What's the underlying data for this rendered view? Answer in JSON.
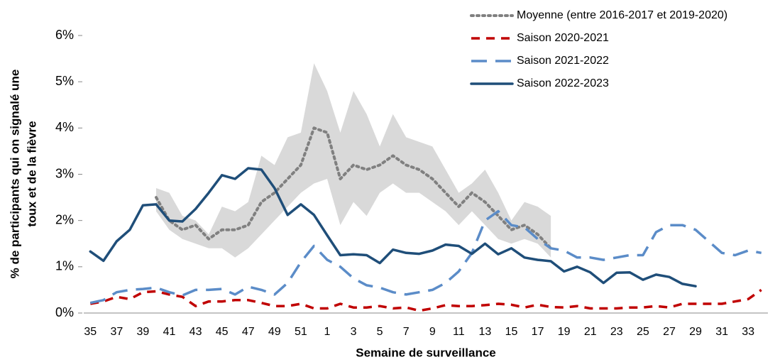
{
  "chart_data": {
    "type": "line",
    "xlabel": "Semaine de surveillance",
    "ylabel": [
      "% de participants qui on signalé une",
      "toux et de la fièvre"
    ],
    "categories": [
      "35",
      null,
      "37",
      null,
      "39",
      null,
      "41",
      null,
      "43",
      null,
      "45",
      null,
      "47",
      null,
      "49",
      null,
      "51",
      null,
      "1",
      null,
      "3",
      null,
      "5",
      null,
      "7",
      null,
      "9",
      null,
      "11",
      null,
      "13",
      null,
      "15",
      null,
      "17",
      null,
      "19",
      null,
      "21",
      null,
      "23",
      null,
      "25",
      null,
      "27",
      null,
      "29",
      null,
      "31",
      null,
      "33",
      null
    ],
    "ylim": [
      0,
      0.06
    ],
    "yticks": [
      {
        "value": 0,
        "label": "0%"
      },
      {
        "value": 0.01,
        "label": "1%"
      },
      {
        "value": 0.02,
        "label": "2%"
      },
      {
        "value": 0.03,
        "label": "3%"
      },
      {
        "value": 0.04,
        "label": "4%"
      },
      {
        "value": 0.05,
        "label": "5%"
      },
      {
        "value": 0.06,
        "label": "6%"
      }
    ],
    "legend": "top-right",
    "band": {
      "color": "#d9d9d9",
      "high": [
        null,
        null,
        null,
        null,
        null,
        0.027,
        0.026,
        0.021,
        0.02,
        0.017,
        0.023,
        0.022,
        0.024,
        0.034,
        0.032,
        0.038,
        0.039,
        0.054,
        0.048,
        0.039,
        0.048,
        0.043,
        0.036,
        0.043,
        0.038,
        0.037,
        0.036,
        0.031,
        0.026,
        0.028,
        0.031,
        0.026,
        0.02,
        0.024,
        0.023,
        0.021,
        null,
        null,
        null,
        null,
        null,
        null,
        null,
        null,
        null,
        null,
        null,
        null,
        null,
        null,
        null,
        null
      ],
      "low": [
        null,
        null,
        null,
        null,
        null,
        0.022,
        0.018,
        0.016,
        0.015,
        0.014,
        0.014,
        0.012,
        0.014,
        0.017,
        0.02,
        0.023,
        0.026,
        0.028,
        0.029,
        0.019,
        0.024,
        0.021,
        0.026,
        0.028,
        0.026,
        0.026,
        0.024,
        0.022,
        0.019,
        0.022,
        0.019,
        0.016,
        0.015,
        0.016,
        0.015,
        0.012,
        null,
        null,
        null,
        null,
        null,
        null,
        null,
        null,
        null,
        null,
        null,
        null,
        null,
        null,
        null,
        null
      ]
    },
    "series": [
      {
        "name": "Moyenne (entre 2016-2017 et 2019-2020)",
        "color": "#808080",
        "style": "dotted",
        "values": [
          null,
          null,
          null,
          null,
          null,
          0.025,
          0.02,
          0.018,
          0.019,
          0.016,
          0.018,
          0.018,
          0.019,
          0.024,
          0.026,
          0.029,
          0.032,
          0.04,
          0.039,
          0.029,
          0.032,
          0.031,
          0.032,
          0.034,
          0.032,
          0.031,
          0.029,
          0.026,
          0.023,
          0.026,
          0.024,
          0.021,
          0.018,
          0.019,
          0.017,
          0.014,
          null,
          null,
          null,
          null,
          null,
          null,
          null,
          null,
          null,
          null,
          null,
          null,
          null,
          null,
          null,
          null
        ]
      },
      {
        "name": "Saison 2020-2021",
        "color": "#c00000",
        "style": "dashed",
        "values": [
          0.002,
          0.0025,
          0.0035,
          0.003,
          0.0045,
          0.0047,
          0.004,
          0.0035,
          0.0015,
          0.0025,
          0.0025,
          0.0028,
          0.0028,
          0.0022,
          0.0015,
          0.0015,
          0.002,
          0.001,
          0.001,
          0.002,
          0.0012,
          0.0012,
          0.0015,
          0.001,
          0.0012,
          0.0005,
          0.001,
          0.0017,
          0.0015,
          0.0015,
          0.0017,
          0.002,
          0.0018,
          0.0012,
          0.0018,
          0.0013,
          0.0012,
          0.0015,
          0.001,
          0.001,
          0.001,
          0.0012,
          0.0012,
          0.0015,
          0.0012,
          0.002,
          0.002,
          0.002,
          0.002,
          0.0025,
          0.003,
          0.005
        ]
      },
      {
        "name": "Saison 2021-2022",
        "color": "#5b8cc8",
        "style": "long-dashed",
        "values": [
          0.0022,
          0.0028,
          0.0045,
          0.005,
          0.0052,
          0.0055,
          0.0045,
          0.0038,
          0.005,
          0.005,
          0.0052,
          0.004,
          0.0057,
          0.005,
          0.004,
          0.0065,
          0.011,
          0.0145,
          0.0115,
          0.01,
          0.0075,
          0.006,
          0.0055,
          0.0045,
          0.004,
          0.0045,
          0.005,
          0.0065,
          0.009,
          0.013,
          0.02,
          0.022,
          0.019,
          0.0185,
          0.016,
          0.014,
          0.0135,
          0.012,
          0.012,
          0.0115,
          0.012,
          0.0125,
          0.0125,
          0.0175,
          0.019,
          0.019,
          0.018,
          0.0155,
          0.013,
          0.0125,
          0.0135,
          0.013
        ]
      },
      {
        "name": "Saison 2022-2023",
        "color": "#1f4e79",
        "style": "solid",
        "values": [
          0.0133,
          0.0113,
          0.0155,
          0.018,
          0.0233,
          0.0235,
          0.02,
          0.0198,
          0.0225,
          0.026,
          0.0298,
          0.029,
          0.0313,
          0.031,
          0.027,
          0.0212,
          0.0235,
          0.0212,
          0.0168,
          0.0125,
          0.0127,
          0.0125,
          0.0108,
          0.0137,
          0.013,
          0.0128,
          0.0135,
          0.0148,
          0.0145,
          0.0128,
          0.015,
          0.0127,
          0.014,
          0.012,
          0.0115,
          0.0112,
          0.009,
          0.01,
          0.0088,
          0.0065,
          0.0087,
          0.0088,
          0.0072,
          0.0083,
          0.0078,
          0.0063,
          0.0058,
          null,
          null,
          null,
          null,
          null
        ]
      }
    ]
  }
}
